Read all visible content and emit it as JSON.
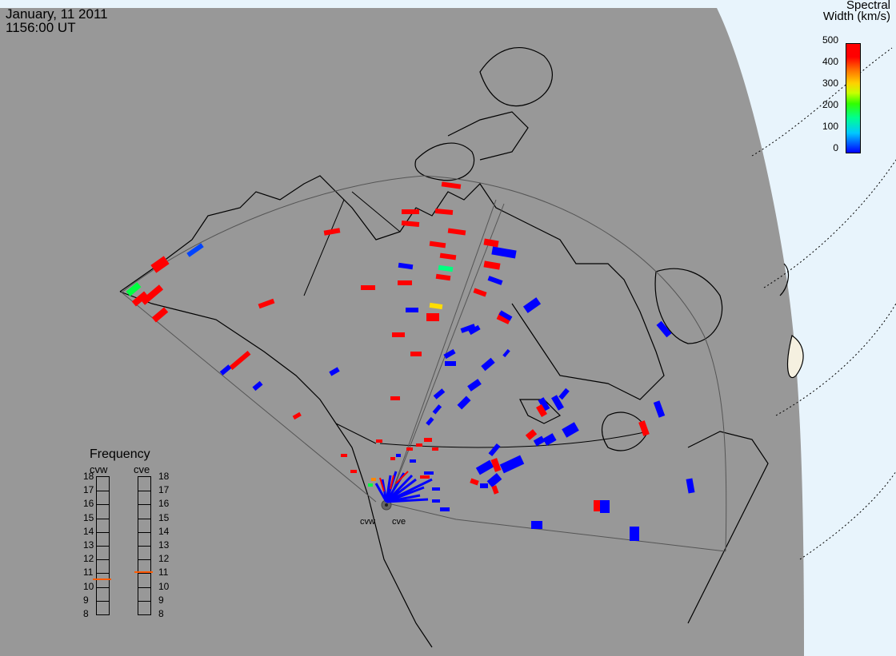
{
  "header": {
    "date": "January, 11 2011",
    "time": "1156:00 UT"
  },
  "colorbar": {
    "title_line1": "Spectral",
    "title_line2": "Width (km/s)",
    "ticks": [
      "500",
      "400",
      "300",
      "200",
      "100",
      "0"
    ],
    "range": [
      0,
      500
    ],
    "colors": {
      "low": "#0000ff",
      "mid": "#00ff00",
      "high": "#ff0000"
    }
  },
  "frequency": {
    "title": "Frequency",
    "radars": [
      "cvw",
      "cve"
    ],
    "scale": [
      "18",
      "17",
      "16",
      "15",
      "14",
      "13",
      "12",
      "11",
      "10",
      "9",
      "8"
    ],
    "values_mhz": {
      "cvw": 10.5,
      "cve": 11
    }
  },
  "sites": {
    "west": "cvw",
    "east": "cve"
  },
  "map": {
    "ocean_color": "#e8f4fc",
    "land_color": "#989898",
    "projection": "polar"
  }
}
